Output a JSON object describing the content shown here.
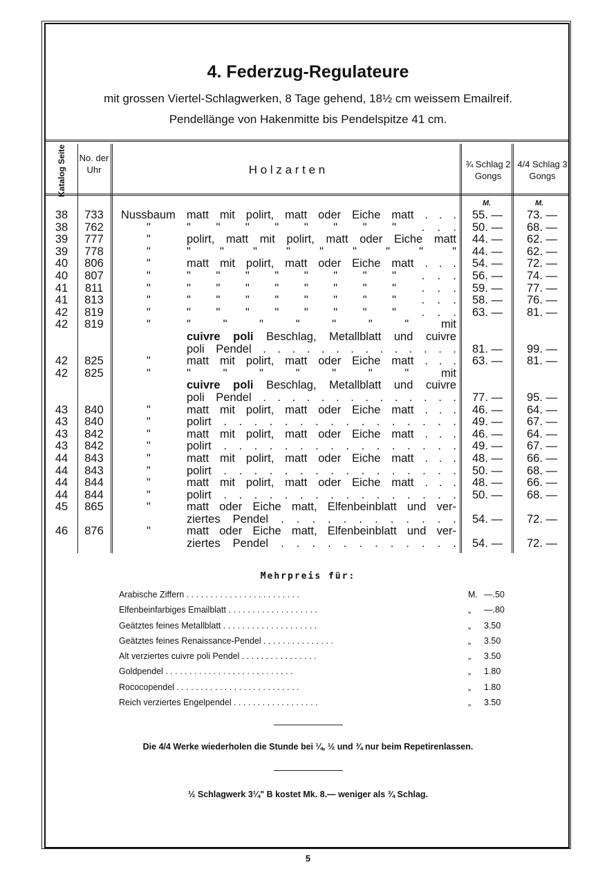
{
  "heading": {
    "title": "4. Federzug-Regulateure",
    "subtitle1": "mit grossen Viertel-Schlagwerken, 8 Tage gehend, 18½ cm weissem Emailreif.",
    "subtitle2": "Pendellänge von Hakenmitte bis Pendelspitze 41 cm."
  },
  "table": {
    "headers": {
      "katalog": "Katalog Seite",
      "nr": "No. der Uhr",
      "holzarten": "H o l z a r t e n",
      "p1": "¾ Schlag 2 Gongs",
      "p2": "4/4 Schlag 3 Gongs",
      "currency1": "M.",
      "currency2": "M."
    },
    "rows": [
      {
        "seite": "38",
        "nr": "733",
        "ditto": "",
        "lines": [
          "Nussbaum matt mit polirt, matt oder Eiche matt . . ."
        ],
        "p1": "55. —",
        "p2": "73. —",
        "lead": true
      },
      {
        "seite": "38",
        "nr": "762",
        "ditto": "\"",
        "lines": [
          "\"  \"  \"  \"  \"  \"  \"  \"  . . ."
        ],
        "p1": "50. —",
        "p2": "68. —"
      },
      {
        "seite": "39",
        "nr": "777",
        "ditto": "\"",
        "lines": [
          "polirt, matt mit polirt, matt oder Eiche matt"
        ],
        "p1": "44. —",
        "p2": "62. —"
      },
      {
        "seite": "39",
        "nr": "778",
        "ditto": "\"",
        "lines": [
          "\"  \"  \"  \"  \"  \"  \"  \"  \""
        ],
        "p1": "44. —",
        "p2": "62. —"
      },
      {
        "seite": "40",
        "nr": "806",
        "ditto": "\"",
        "lines": [
          "matt mit polirt, matt oder Eiche matt . . ."
        ],
        "p1": "54. —",
        "p2": "72. —"
      },
      {
        "seite": "40",
        "nr": "807",
        "ditto": "\"",
        "lines": [
          "\"  \"  \"  \"  \"  \"  \"  \"  . . ."
        ],
        "p1": "56. —",
        "p2": "74. —"
      },
      {
        "seite": "41",
        "nr": "811",
        "ditto": "\"",
        "lines": [
          "\"  \"  \"  \"  \"  \"  \"  \"  . . ."
        ],
        "p1": "59. —",
        "p2": "77. —"
      },
      {
        "seite": "41",
        "nr": "813",
        "ditto": "\"",
        "lines": [
          "\"  \"  \"  \"  \"  \"  \"  \"  . . ."
        ],
        "p1": "58. —",
        "p2": "76. —"
      },
      {
        "seite": "42",
        "nr": "819",
        "ditto": "\"",
        "lines": [
          "\"  \"  \"  \"  \"  \"  \"  \"  . . ."
        ],
        "p1": "63. —",
        "p2": "81. —"
      },
      {
        "seite": "42",
        "nr": "819",
        "ditto": "\"",
        "lines": [
          "\"  \"  \"  \"  \"  \"  \"  mit",
          "cuivre poli Beschlag, Metallblatt und cuivre",
          "poli Pendel . . . . . . . . . . . . . ."
        ],
        "p1": "81. —",
        "p2": "99. —"
      },
      {
        "seite": "42",
        "nr": "825",
        "ditto": "\"",
        "lines": [
          "matt mit polirt, matt oder Eiche matt . . ."
        ],
        "p1": "63. —",
        "p2": "81. —"
      },
      {
        "seite": "42",
        "nr": "825",
        "ditto": "\"",
        "lines": [
          "\"  \"  \"  \"  \"  \"  \"  mit",
          "cuivre poli Beschlag, Metallblatt und cuivre",
          "poli Pendel . . . . . . . . . . . . . ."
        ],
        "p1": "77. —",
        "p2": "95. —"
      },
      {
        "seite": "43",
        "nr": "840",
        "ditto": "\"",
        "lines": [
          "matt mit polirt, matt oder Eiche matt . . ."
        ],
        "p1": "46. —",
        "p2": "64. —"
      },
      {
        "seite": "43",
        "nr": "840",
        "ditto": "\"",
        "lines": [
          "polirt . . . . . . . . . . . . . . . ."
        ],
        "p1": "49. —",
        "p2": "67. —"
      },
      {
        "seite": "43",
        "nr": "842",
        "ditto": "\"",
        "lines": [
          "matt mit polirt, matt oder Eiche matt . . ."
        ],
        "p1": "46. —",
        "p2": "64. —"
      },
      {
        "seite": "43",
        "nr": "842",
        "ditto": "\"",
        "lines": [
          "polirt . . . . . . . . . . . . . . . ."
        ],
        "p1": "49. —",
        "p2": "67. —"
      },
      {
        "seite": "44",
        "nr": "843",
        "ditto": "\"",
        "lines": [
          "matt mit polirt, matt oder Eiche matt . . ."
        ],
        "p1": "48. —",
        "p2": "66. —"
      },
      {
        "seite": "44",
        "nr": "843",
        "ditto": "\"",
        "lines": [
          "polirt . . . . . . . . . . . . . . . ."
        ],
        "p1": "50. —",
        "p2": "68. —"
      },
      {
        "seite": "44",
        "nr": "844",
        "ditto": "\"",
        "lines": [
          "matt mit polirt, matt oder Eiche matt . . ."
        ],
        "p1": "48. —",
        "p2": "66. —"
      },
      {
        "seite": "44",
        "nr": "844",
        "ditto": "\"",
        "lines": [
          "polirt . . . . . . . . . . . . . . . ."
        ],
        "p1": "50. —",
        "p2": "68. —"
      },
      {
        "seite": "45",
        "nr": "865",
        "ditto": "\"",
        "lines": [
          "matt oder Eiche matt, Elfenbeinblatt und ver-",
          "ziertes Pendel . . . . . . . . . . . ."
        ],
        "p1": "54. —",
        "p2": "72. —"
      },
      {
        "seite": "46",
        "nr": "876",
        "ditto": "\"",
        "lines": [
          "matt oder Eiche matt, Elfenbeinblatt und ver-",
          "ziertes Pendel . . . . . . . . . . . ."
        ],
        "p1": "54. —",
        "p2": "72. —"
      }
    ]
  },
  "mehrpreis": {
    "title": "Mehrpreis für:",
    "items": [
      {
        "label": "Arabische Ziffern . . . . . . . . . . . . . . . . . . . . . . . .",
        "q": "M.",
        "value": "—.50"
      },
      {
        "label": "Elfenbeinfarbiges Emailblatt . . . . . . . . . . . . . . . . . . .",
        "q": "„",
        "value": "—.80"
      },
      {
        "label": "Geätztes feines Metallblatt . . . . . . . . . . . . . . . . . . . .",
        "q": "„",
        "value": "3.50"
      },
      {
        "label": "Geätztes feines Renaissance-Pendel . . . . . . . . . . . . . . .",
        "q": "„",
        "value": "3.50"
      },
      {
        "label": "Alt verziertes cuivre poli Pendel . . . . . . . . . . . . . . . .",
        "q": "„",
        "value": "3.50"
      },
      {
        "label": "Goldpendel . . . . . . . . . . . . . . . . . . . . . . . . . . .",
        "q": "„",
        "value": "1.80"
      },
      {
        "label": "Rococopendel . . . . . . . . . . . . . . . . . . . . . . . . . .",
        "q": "„",
        "value": "1.80"
      },
      {
        "label": "Reich verziertes Engelpendel . . . . . . . . . . . . . . . . . .",
        "q": "„",
        "value": "3.50"
      }
    ]
  },
  "notes": {
    "note1": "Die 4/4 Werke wiederholen die Stunde bei ¼, ½ und ¾ nur beim Repetirenlassen.",
    "note2": "½ Schlagwerk 3¼\" B kostet Mk. 8.— weniger als ¾ Schlag."
  },
  "page_number": "5"
}
